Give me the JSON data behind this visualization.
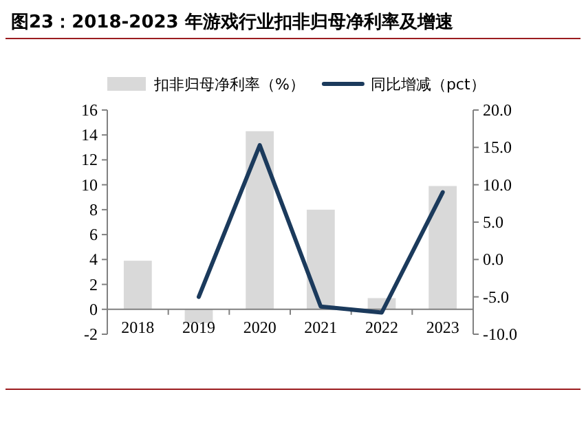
{
  "chart_data": {
    "type": "bar",
    "title": "图23：2018-2023 年游戏行业扣非归母净利率及增速",
    "categories": [
      "2018",
      "2019",
      "2020",
      "2021",
      "2022",
      "2023"
    ],
    "series": [
      {
        "name": "扣非归母净利率（%）",
        "color": "#d9d9d9",
        "values": [
          3.9,
          -1.1,
          14.3,
          8.0,
          0.9,
          9.9
        ]
      },
      {
        "name": "同比增减（pct）",
        "type": "line",
        "axis": "y2",
        "color": "#1b3a5c",
        "values": [
          null,
          -5.0,
          15.3,
          -6.3,
          -7.1,
          9.0
        ]
      }
    ],
    "ylim": [
      -2,
      16
    ],
    "yticks": [
      -2,
      0,
      2,
      4,
      6,
      8,
      10,
      12,
      14,
      16
    ],
    "y2lim": [
      -10,
      20
    ],
    "y2ticks": [
      {
        "value": -10,
        "label": "-10.0"
      },
      {
        "value": -5,
        "label": "-5.0"
      },
      {
        "value": 0,
        "label": "0.0"
      },
      {
        "value": 5,
        "label": "5.0"
      },
      {
        "value": 10,
        "label": "10.0"
      },
      {
        "value": 15,
        "label": "15.0"
      },
      {
        "value": 20,
        "label": "20.0"
      }
    ],
    "legend": "top",
    "grid": false,
    "marker": "none",
    "line_style": "solid"
  }
}
